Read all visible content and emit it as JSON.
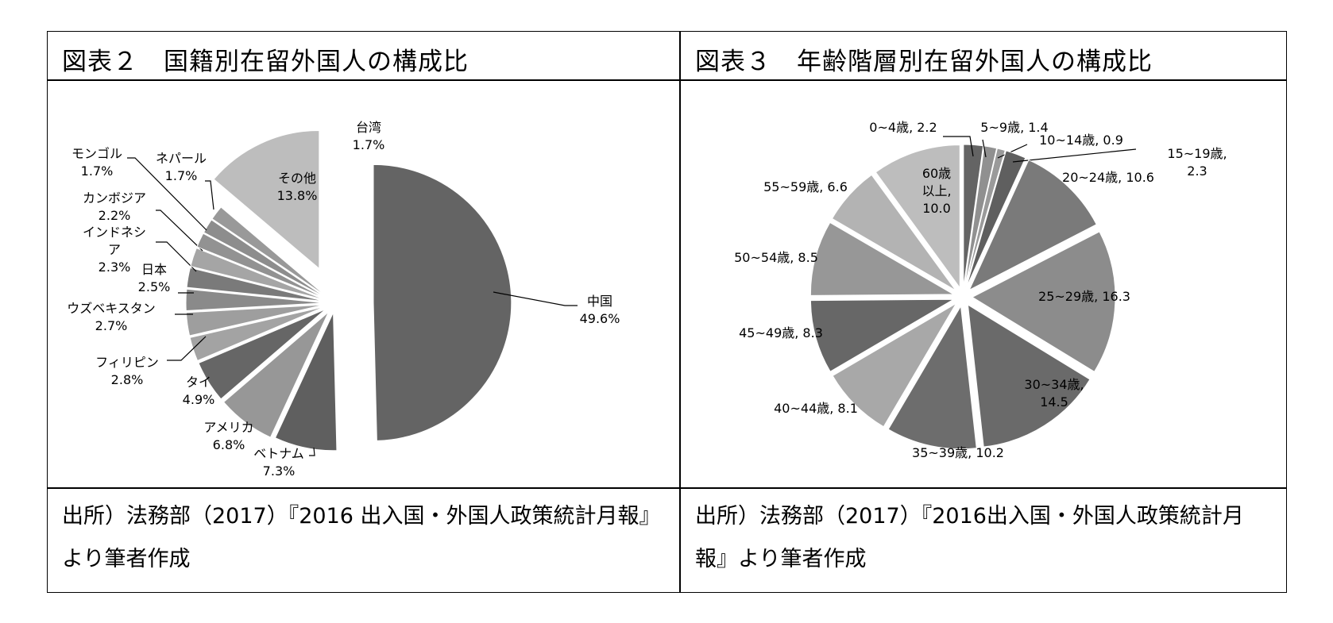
{
  "left": {
    "title": "図表２　国籍別在留外国人の構成比",
    "source": "出所）法務部（2017）『2016 出入国・外国人政策統計月報』より筆者作成"
  },
  "right": {
    "title": "図表３　年齢階層別在留外国人の構成比",
    "source": "出所）法務部（2017）『2016出入国・外国人政策統計月報』より筆者作成"
  },
  "chart_data": [
    {
      "type": "pie",
      "title": "図表２　国籍別在留外国人の構成比",
      "unit": "%",
      "categories": [
        "中国",
        "ベトナム",
        "アメリカ",
        "タイ",
        "フィリピン",
        "ウズベキスタン",
        "日本",
        "インドネシア",
        "カンボジア",
        "ネパール",
        "モンゴル",
        "台湾",
        "その他"
      ],
      "values": [
        49.6,
        7.3,
        6.8,
        4.9,
        2.8,
        2.7,
        2.5,
        2.3,
        2.2,
        1.7,
        1.7,
        1.7,
        13.8
      ],
      "label_names": [
        "中国",
        "ベトナム",
        "アメリカ",
        "タイ",
        "フィリピン",
        "ウズベキスタン",
        "日本",
        [
          "インドネシ",
          "ア"
        ],
        "カンボジア",
        "ネパール",
        "モンゴル",
        "台湾",
        "その他"
      ],
      "label_values": [
        "49.6%",
        "7.3%",
        "6.8%",
        "4.9%",
        "2.8%",
        "2.7%",
        "2.5%",
        "2.3%",
        "2.2%",
        "1.7%",
        "1.7%",
        "1.7%",
        "13.8%"
      ],
      "colors": [
        "#646464",
        "#5f5f5f",
        "#979797",
        "#666666",
        "#a3a3a3",
        "#9e9e9e",
        "#8a8a8a",
        "#7a7a7a",
        "#a5a5a5",
        "#929292",
        "#8d8d8d",
        "#999999",
        "#bdbdbd"
      ]
    },
    {
      "type": "pie",
      "title": "図表３　年齢階層別在留外国人の構成比",
      "categories": [
        "0~4歳",
        "5~9歳",
        "10~14歳",
        "15~19歳",
        "20~24歳",
        "25~29歳",
        "30~34歳",
        "35~39歳",
        "40~44歳",
        "45~49歳",
        "50~54歳",
        "55~59歳",
        "60歳以上"
      ],
      "values": [
        2.2,
        1.4,
        0.9,
        2.3,
        10.6,
        16.3,
        14.5,
        10.2,
        8.1,
        8.3,
        8.5,
        6.6,
        10.0
      ],
      "labels": [
        [
          "0~4歳, 2.2"
        ],
        [
          "5~9歳, 1.4"
        ],
        [
          "10~14歳, 0.9"
        ],
        [
          "15~19歳,",
          "2.3"
        ],
        [
          "20~24歳, 10.6"
        ],
        [
          "25~29歳, 16.3"
        ],
        [
          "30~34歳,",
          "14.5"
        ],
        [
          "35~39歳, 10.2"
        ],
        [
          "40~44歳, 8.1"
        ],
        [
          "45~49歳, 8.3"
        ],
        [
          "50~54歳, 8.5"
        ],
        [
          "55~59歳, 6.6"
        ],
        [
          "60歳",
          "以上,",
          "10.0"
        ]
      ],
      "colors": [
        "#646464",
        "#909090",
        "#9a9a9a",
        "#5f5f5f",
        "#7a7a7a",
        "#8c8c8c",
        "#6a6a6a",
        "#6d6d6d",
        "#a8a8a8",
        "#676767",
        "#979797",
        "#b3b3b3",
        "#bdbdbd"
      ]
    }
  ]
}
